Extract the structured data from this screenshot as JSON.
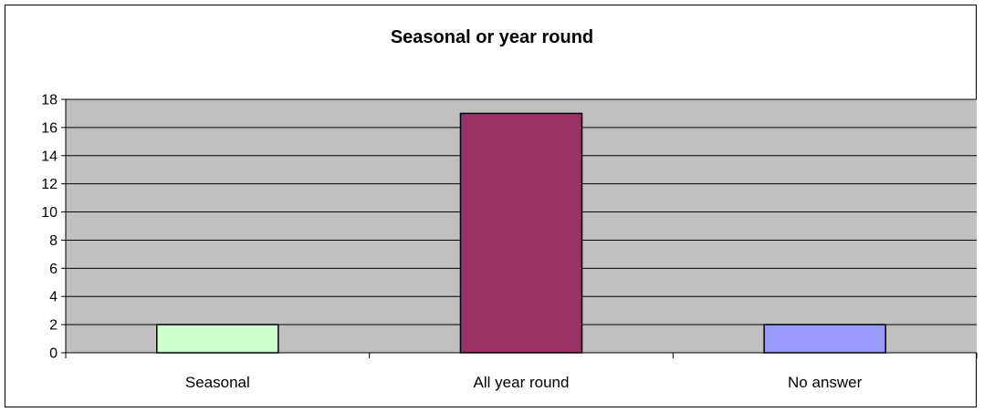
{
  "chart_data": {
    "type": "bar",
    "title": "Seasonal or year round",
    "xlabel": "",
    "ylabel": "",
    "categories": [
      "Seasonal",
      "All year round",
      "No answer"
    ],
    "values": [
      2,
      17,
      2
    ],
    "colors": [
      "#ccffcc",
      "#993366",
      "#9999ff"
    ],
    "ylim": [
      0,
      18
    ],
    "yticks": [
      "0",
      "2",
      "4",
      "6",
      "8",
      "10",
      "12",
      "14",
      "16",
      "18"
    ],
    "grid": true,
    "legend": "none",
    "plot_background": "#c0c0c0"
  }
}
